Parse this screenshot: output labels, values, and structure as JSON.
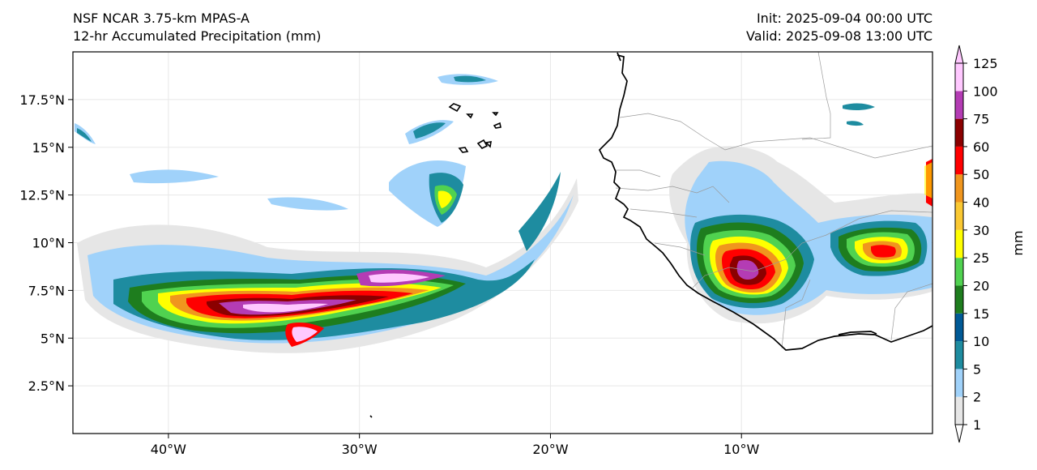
{
  "header": {
    "model": "NSF NCAR 3.75-km MPAS-A",
    "field": "12-hr Accumulated Precipitation (mm)",
    "init": "Init: 2025-09-04 00:00 UTC",
    "valid": "Valid: 2025-09-08 13:00 UTC"
  },
  "map": {
    "lon_range": [
      -45,
      0
    ],
    "lat_range": [
      0,
      20
    ],
    "lon_ticks": [
      {
        "value": -40,
        "label": "40°W"
      },
      {
        "value": -30,
        "label": "30°W"
      },
      {
        "value": -20,
        "label": "20°W"
      },
      {
        "value": -10,
        "label": "10°W"
      }
    ],
    "lat_ticks": [
      {
        "value": 2.5,
        "label": "2.5°N"
      },
      {
        "value": 5,
        "label": "5°N"
      },
      {
        "value": 7.5,
        "label": "7.5°N"
      },
      {
        "value": 10,
        "label": "10°N"
      },
      {
        "value": 12.5,
        "label": "12.5°N"
      },
      {
        "value": 15,
        "label": "15°N"
      },
      {
        "value": 17.5,
        "label": "17.5°N"
      }
    ]
  },
  "colorbar": {
    "unit_label": "mm",
    "levels": [
      "1",
      "2",
      "5",
      "10",
      "15",
      "20",
      "25",
      "30",
      "40",
      "50",
      "60",
      "75",
      "100",
      "125"
    ],
    "colors": [
      "#e6e6e6",
      "#a0d2fa",
      "#1e8ca0",
      "#005a96",
      "#1e7d1e",
      "#50d250",
      "#ffff00",
      "#fac832",
      "#f0961e",
      "#ff0000",
      "#8b0000",
      "#b43cb4",
      "#ffc8ff"
    ]
  },
  "colors": {
    "coastline": "#000000",
    "borders": "#9a9a9a",
    "gridlines": "#e8e8e8"
  }
}
